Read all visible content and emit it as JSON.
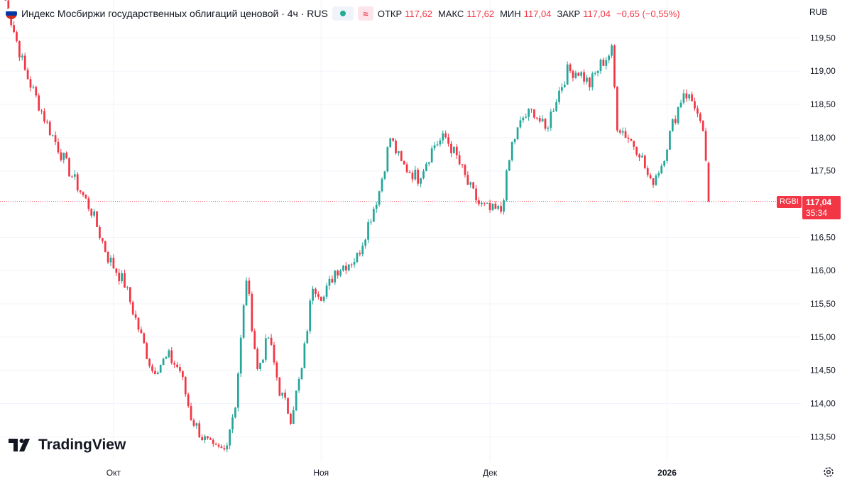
{
  "header": {
    "title": "Индекс Мосбиржи государственных облигаций ценовой · 4ч · RUS",
    "ohlc": [
      {
        "label": "ОТКР",
        "value": "117,62"
      },
      {
        "label": "МАКС",
        "value": "117,62"
      },
      {
        "label": "МИН",
        "value": "117,04"
      },
      {
        "label": "ЗАКР",
        "value": "117,04"
      }
    ],
    "change": "−0,65 (−0,55%)",
    "approx_symbol": "≈"
  },
  "currency": "RUB",
  "last_price": {
    "ticker": "RGBI",
    "price": "117,04",
    "countdown": "35:34",
    "value": 117.04
  },
  "branding": {
    "logo_text": "TradingView"
  },
  "colors": {
    "up": "#26a69a",
    "down": "#f23645",
    "grid": "#f0f3fa",
    "text": "#131722",
    "status_dot": "#22ab94"
  },
  "icons": {
    "flag": "russia-flag-icon",
    "settings": "gear-icon",
    "logo": "tradingview-logo-icon"
  },
  "chart_data": {
    "type": "candlestick",
    "y_ticks": [
      "119,50",
      "119,00",
      "118,50",
      "118,00",
      "117,50",
      "116,50",
      "116,00",
      "115,50",
      "115,00",
      "114,50",
      "114,00",
      "113,50"
    ],
    "y_tick_values": [
      119.5,
      119.0,
      118.5,
      118.0,
      117.5,
      116.5,
      116.0,
      115.5,
      115.0,
      114.5,
      114.0,
      113.5
    ],
    "x_ticks": [
      {
        "label": "Окт",
        "index": 40
      },
      {
        "label": "Ноя",
        "index": 115
      },
      {
        "label": "Дек",
        "index": 176
      },
      {
        "label": "2026",
        "index": 240
      }
    ],
    "ylim": [
      113.13,
      120.07
    ],
    "candle_count": 256,
    "waypoints": [
      [
        0,
        120.2
      ],
      [
        8,
        119.0
      ],
      [
        16,
        118.2
      ],
      [
        24,
        117.5
      ],
      [
        32,
        116.9
      ],
      [
        38,
        116.2
      ],
      [
        44,
        115.8
      ],
      [
        50,
        115.0
      ],
      [
        54,
        114.5
      ],
      [
        60,
        114.7
      ],
      [
        64,
        114.5
      ],
      [
        68,
        113.8
      ],
      [
        72,
        113.5
      ],
      [
        76,
        113.3
      ],
      [
        80,
        113.3
      ],
      [
        84,
        114.0
      ],
      [
        88,
        115.9
      ],
      [
        92,
        114.5
      ],
      [
        96,
        115.0
      ],
      [
        100,
        114.2
      ],
      [
        104,
        113.8
      ],
      [
        108,
        114.5
      ],
      [
        112,
        115.8
      ],
      [
        116,
        115.6
      ],
      [
        120,
        116.0
      ],
      [
        124,
        116.1
      ],
      [
        128,
        116.2
      ],
      [
        132,
        116.7
      ],
      [
        136,
        117.2
      ],
      [
        140,
        118.0
      ],
      [
        144,
        117.6
      ],
      [
        150,
        117.4
      ],
      [
        156,
        117.9
      ],
      [
        160,
        118.0
      ],
      [
        164,
        117.7
      ],
      [
        168,
        117.3
      ],
      [
        172,
        117.0
      ],
      [
        176,
        116.9
      ],
      [
        180,
        116.9
      ],
      [
        184,
        117.9
      ],
      [
        188,
        118.3
      ],
      [
        192,
        118.4
      ],
      [
        196,
        118.1
      ],
      [
        200,
        118.6
      ],
      [
        204,
        119.0
      ],
      [
        208,
        119.0
      ],
      [
        212,
        118.8
      ],
      [
        216,
        119.1
      ],
      [
        220,
        119.3
      ],
      [
        222,
        118.2
      ],
      [
        226,
        118.0
      ],
      [
        230,
        117.8
      ],
      [
        234,
        117.3
      ],
      [
        238,
        117.6
      ],
      [
        242,
        118.2
      ],
      [
        246,
        118.7
      ],
      [
        250,
        118.5
      ],
      [
        253,
        118.0
      ],
      [
        256,
        117.04
      ]
    ]
  }
}
